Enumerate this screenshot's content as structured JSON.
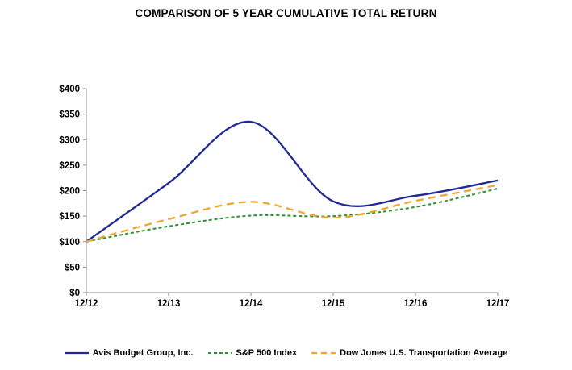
{
  "title": "COMPARISON OF 5 YEAR CUMULATIVE TOTAL RETURN",
  "chart_data": {
    "type": "line",
    "smooth": true,
    "grid": false,
    "legend_position": "bottom",
    "categories": [
      "12/12",
      "12/13",
      "12/14",
      "12/15",
      "12/16",
      "12/17"
    ],
    "series": [
      {
        "name": "Avis Budget Group, Inc.",
        "color": "#212A94",
        "dash": "solid",
        "values": [
          100,
          215,
          335,
          179,
          190,
          220
        ]
      },
      {
        "name": "S&P 500 Index",
        "color": "#2E9132",
        "dash": "short",
        "values": [
          100,
          130,
          151,
          150,
          168,
          204
        ]
      },
      {
        "name": "Dow Jones U.S. Transportation Average",
        "color": "#F4A42C",
        "dash": "long",
        "values": [
          100,
          144,
          178,
          147,
          180,
          211
        ]
      }
    ],
    "ylim": [
      0,
      400
    ],
    "ytick_step": 50,
    "ytick_labels": [
      "$0",
      "$50",
      "$100",
      "$150",
      "$200",
      "$250",
      "$300",
      "$350",
      "$400"
    ],
    "xlabel": "",
    "ylabel": "",
    "axis_color": "#8C8C8C",
    "text_color": "#000000"
  }
}
